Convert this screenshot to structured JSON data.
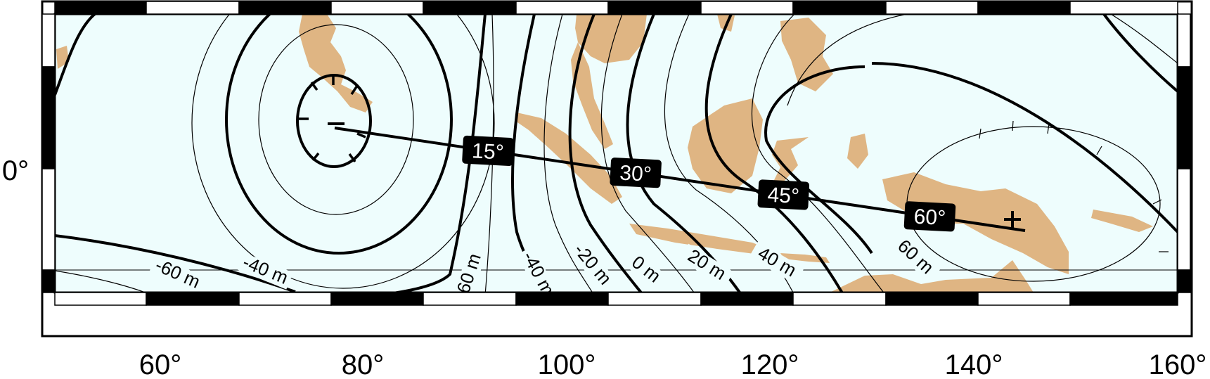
{
  "map": {
    "projection": "mercator",
    "region": {
      "lon_min": 50,
      "lon_max": 160,
      "lat_label": "0°"
    },
    "colors": {
      "ocean": "#eefdfd",
      "land": "#dfb583",
      "contour": "#000000",
      "frame_dark": "#000000",
      "frame_light": "#ffffff",
      "label_box": "#000000",
      "label_text": "#ffffff"
    },
    "x_ticks": [
      "60°",
      "80°",
      "100°",
      "120°",
      "140°",
      "160°"
    ],
    "y_ticks": [
      "0°"
    ],
    "contour_labels": [
      "-60 m",
      "-40 m",
      "-60 m",
      "-40 m",
      "-20 m",
      "0 m",
      "20 m",
      "40 m",
      "60 m"
    ],
    "great_circle": {
      "start_symbol": "minus",
      "end_symbol": "plus",
      "distance_labels": [
        "15°",
        "30°",
        "45°",
        "60°"
      ]
    }
  }
}
